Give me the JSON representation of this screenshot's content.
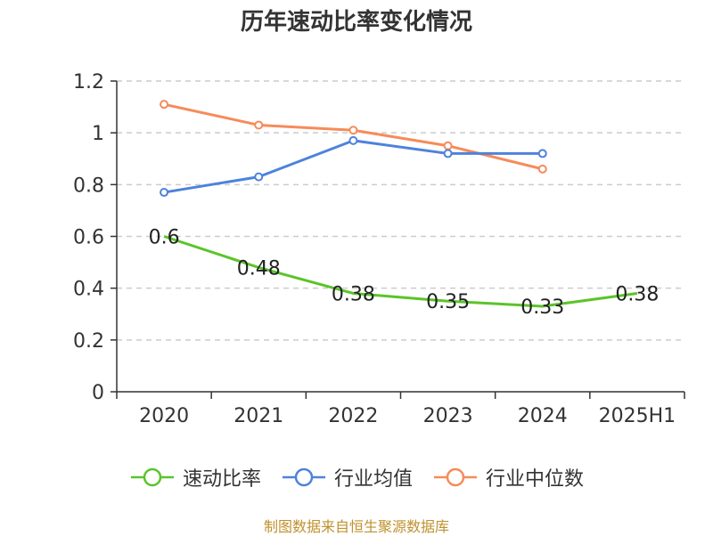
{
  "title": "历年速动比率变化情况",
  "source": "制图数据来自恒生聚源数据库",
  "colors": {
    "quick_ratio": "#5bc42a",
    "industry_mean": "#4e82dc",
    "industry_median": "#f68b5a",
    "source": "#c0912e",
    "axis": "#333333",
    "grid": "#cccccc"
  },
  "chart_data": {
    "type": "line",
    "title": "历年速动比率变化情况",
    "categories": [
      "2020",
      "2021",
      "2022",
      "2023",
      "2024",
      "2025H1"
    ],
    "ylim": [
      0,
      1.2
    ],
    "yticks": [
      "0",
      "0.2",
      "0.4",
      "0.6",
      "0.8",
      "1",
      "1.2"
    ],
    "grid": "horizontal-dashed",
    "legend": "bottom",
    "series": [
      {
        "name": "速动比率",
        "values": [
          0.6,
          0.48,
          0.38,
          0.35,
          0.33,
          0.38
        ],
        "labels": [
          "0.6",
          "0.48",
          "0.38",
          "0.35",
          "0.33",
          "0.38"
        ],
        "markers": false
      },
      {
        "name": "行业均值",
        "values": [
          0.77,
          0.83,
          0.97,
          0.92,
          0.92,
          null
        ],
        "markers": true
      },
      {
        "name": "行业中位数",
        "values": [
          1.11,
          1.03,
          1.01,
          0.95,
          0.86,
          null
        ],
        "markers": true
      }
    ]
  }
}
